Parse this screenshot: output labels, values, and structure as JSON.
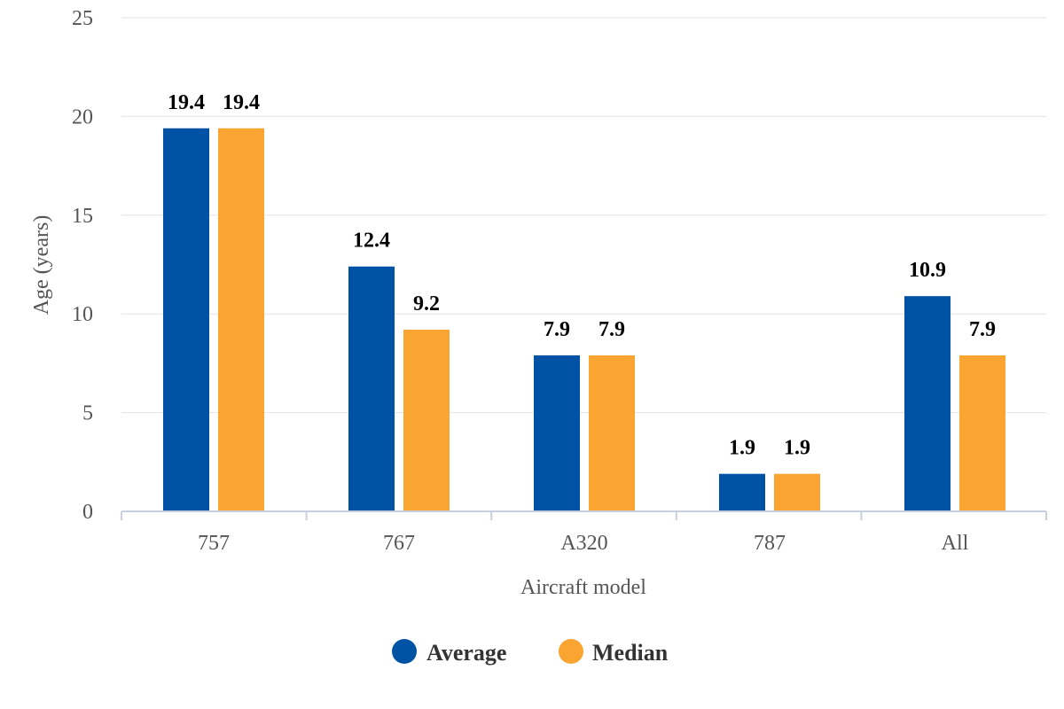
{
  "chart_data": {
    "type": "bar",
    "categories": [
      "757",
      "767",
      "A320",
      "787",
      "All"
    ],
    "series": [
      {
        "name": "Average",
        "values": [
          19.4,
          12.4,
          7.9,
          1.9,
          10.9
        ],
        "color": "#0052a5"
      },
      {
        "name": "Median",
        "values": [
          19.4,
          9.2,
          7.9,
          1.9,
          7.9
        ],
        "color": "#faa532"
      }
    ],
    "xlabel": "Aircraft model",
    "ylabel": "Age (years)",
    "ylim": [
      0,
      25
    ],
    "yticks": [
      0,
      5,
      10,
      15,
      20,
      25
    ],
    "grid": true,
    "legend_position": "bottom"
  }
}
